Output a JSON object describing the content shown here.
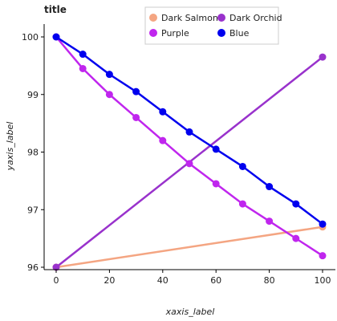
{
  "chart_data": {
    "type": "line",
    "title": "title",
    "xlabel": "xaxis_label",
    "ylabel": "yaxis_label",
    "xlim": [
      0,
      100
    ],
    "ylim": [
      96,
      100
    ],
    "xticks": [
      0,
      20,
      40,
      60,
      80,
      100
    ],
    "yticks": [
      96,
      97,
      98,
      99,
      100
    ],
    "grid": false,
    "legend_position": "top",
    "series": [
      {
        "name": "Dark Salmon",
        "color": "#f4a582",
        "x": [
          0,
          100
        ],
        "y": [
          96.0,
          96.7
        ]
      },
      {
        "name": "Dark Orchid",
        "color": "#9932cc",
        "x": [
          0,
          100
        ],
        "y": [
          96.0,
          99.65
        ]
      },
      {
        "name": "Purple",
        "color": "#c026ee",
        "x": [
          0,
          10,
          20,
          30,
          40,
          50,
          60,
          70,
          80,
          90,
          100
        ],
        "y": [
          100.0,
          99.45,
          99.0,
          98.6,
          98.2,
          97.8,
          97.45,
          97.1,
          96.8,
          96.5,
          96.2
        ]
      },
      {
        "name": "Blue",
        "color": "#0000ee",
        "x": [
          0,
          10,
          20,
          30,
          40,
          50,
          60,
          70,
          80,
          90,
          100
        ],
        "y": [
          100.0,
          99.7,
          99.35,
          99.05,
          98.7,
          98.35,
          98.05,
          97.75,
          97.4,
          97.1,
          96.75
        ]
      }
    ]
  }
}
